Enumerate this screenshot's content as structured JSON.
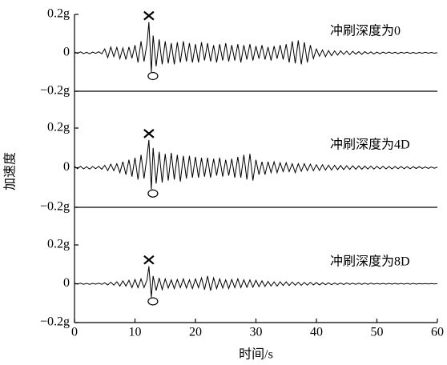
{
  "ylabel": "加速度",
  "chart_data": [
    {
      "type": "line",
      "annotation": "冲刷深度为0",
      "color": "#000000",
      "xlim": [
        0,
        60
      ],
      "ylim": [
        -0.2,
        0.2
      ],
      "yticks": [
        {
          "value": -0.2,
          "label": "−0.2g"
        },
        0,
        {
          "value": 0.2,
          "label": "0.2g"
        }
      ],
      "x": [
        0,
        0.5,
        1,
        1.5,
        2,
        2.5,
        3,
        3.5,
        4,
        4.5,
        5,
        5.5,
        6,
        6.5,
        7,
        7.5,
        8,
        8.5,
        9,
        9.5,
        10,
        10.5,
        11,
        11.5,
        12,
        12.3,
        12.7,
        13,
        13.5,
        14,
        14.5,
        15,
        15.5,
        16,
        16.5,
        17,
        17.5,
        18,
        18.5,
        19,
        19.5,
        20,
        20.5,
        21,
        21.5,
        22,
        22.5,
        23,
        23.5,
        24,
        24.5,
        25,
        25.5,
        26,
        26.5,
        27,
        27.5,
        28,
        28.5,
        29,
        29.5,
        30,
        30.5,
        31,
        31.5,
        32,
        32.5,
        33,
        33.5,
        34,
        34.5,
        35,
        35.5,
        36,
        36.5,
        37,
        37.5,
        38,
        38.5,
        39,
        39.5,
        40,
        40.5,
        41,
        41.5,
        42,
        42.5,
        43,
        43.5,
        44,
        44.5,
        45,
        45.5,
        46,
        46.5,
        47,
        47.5,
        48,
        48.5,
        49,
        49.5,
        50,
        50.5,
        51,
        51.5,
        52,
        52.5,
        53,
        53.5,
        54,
        54.5,
        55,
        55.5,
        56,
        56.5,
        57,
        57.5,
        58,
        58.5,
        59,
        59.5,
        60
      ],
      "values": [
        0.004,
        -0.003,
        0.005,
        -0.004,
        0.003,
        -0.005,
        0.004,
        -0.003,
        0.006,
        -0.005,
        0.02,
        -0.025,
        0.03,
        -0.02,
        0.028,
        -0.03,
        0.025,
        -0.035,
        0.03,
        -0.028,
        0.04,
        -0.05,
        0.06,
        -0.045,
        0.05,
        0.16,
        -0.1,
        0.09,
        -0.07,
        0.07,
        -0.06,
        0.06,
        -0.055,
        0.05,
        -0.06,
        0.055,
        -0.05,
        0.06,
        -0.045,
        0.05,
        -0.05,
        0.045,
        -0.05,
        0.055,
        -0.04,
        0.05,
        -0.045,
        0.04,
        -0.05,
        0.045,
        -0.04,
        0.05,
        -0.045,
        0.04,
        -0.04,
        0.045,
        -0.05,
        0.04,
        -0.035,
        0.045,
        -0.04,
        0.035,
        -0.03,
        0.04,
        -0.035,
        0.03,
        -0.04,
        0.035,
        -0.03,
        0.04,
        -0.035,
        0.045,
        -0.05,
        0.06,
        -0.055,
        0.065,
        -0.06,
        0.055,
        -0.05,
        0.04,
        -0.03,
        0.02,
        -0.018,
        0.015,
        -0.02,
        0.012,
        -0.015,
        0.01,
        -0.012,
        0.01,
        -0.008,
        0.009,
        -0.01,
        0.008,
        -0.007,
        0.006,
        -0.008,
        0.006,
        -0.005,
        0.005,
        -0.006,
        0.004,
        -0.005,
        0.004,
        -0.003,
        0.004,
        -0.003,
        0.003,
        -0.004,
        0.003,
        -0.002,
        0.003,
        -0.003,
        0.002,
        -0.003,
        0.002,
        -0.002,
        0.003,
        -0.002,
        0.002,
        -0.002,
        0.001
      ]
    },
    {
      "type": "line",
      "annotation": "冲刷深度为4D",
      "color": "#000000",
      "xlim": [
        0,
        60
      ],
      "ylim": [
        -0.2,
        0.2
      ],
      "yticks": [
        {
          "value": -0.2,
          "label": "−0.2g"
        },
        0,
        {
          "value": 0.2,
          "label": "0.2g"
        }
      ],
      "x": [
        0,
        0.5,
        1,
        1.5,
        2,
        2.5,
        3,
        3.5,
        4,
        4.5,
        5,
        5.5,
        6,
        6.5,
        7,
        7.5,
        8,
        8.5,
        9,
        9.5,
        10,
        10.5,
        11,
        11.5,
        12,
        12.3,
        12.7,
        13,
        13.5,
        14,
        14.5,
        15,
        15.5,
        16,
        16.5,
        17,
        17.5,
        18,
        18.5,
        19,
        19.5,
        20,
        20.5,
        21,
        21.5,
        22,
        22.5,
        23,
        23.5,
        24,
        24.5,
        25,
        25.5,
        26,
        26.5,
        27,
        27.5,
        28,
        28.5,
        29,
        29.5,
        30,
        30.5,
        31,
        31.5,
        32,
        32.5,
        33,
        33.5,
        34,
        34.5,
        35,
        35.5,
        36,
        36.5,
        37,
        37.5,
        38,
        38.5,
        39,
        39.5,
        40,
        40.5,
        41,
        41.5,
        42,
        42.5,
        43,
        43.5,
        44,
        44.5,
        45,
        45.5,
        46,
        46.5,
        47,
        47.5,
        48,
        48.5,
        49,
        49.5,
        50,
        50.5,
        51,
        51.5,
        52,
        52.5,
        53,
        53.5,
        54,
        54.5,
        55,
        55.5,
        56,
        56.5,
        57,
        57.5,
        58,
        58.5,
        59,
        59.5,
        60
      ],
      "values": [
        0.006,
        -0.005,
        0.007,
        -0.006,
        0.005,
        -0.007,
        0.006,
        -0.005,
        0.007,
        -0.008,
        0.012,
        -0.015,
        0.018,
        -0.015,
        0.02,
        -0.025,
        0.03,
        -0.035,
        0.04,
        -0.045,
        0.05,
        -0.06,
        0.065,
        -0.055,
        0.06,
        0.14,
        -0.11,
        0.1,
        -0.08,
        0.08,
        -0.075,
        0.07,
        -0.065,
        0.075,
        -0.06,
        0.065,
        -0.07,
        0.06,
        -0.055,
        0.06,
        -0.05,
        0.055,
        -0.05,
        0.05,
        -0.045,
        0.05,
        -0.05,
        0.045,
        -0.04,
        0.05,
        -0.045,
        0.04,
        -0.04,
        0.045,
        -0.05,
        0.055,
        -0.05,
        0.065,
        -0.06,
        0.07,
        -0.065,
        0.04,
        -0.035,
        0.03,
        -0.035,
        0.03,
        -0.025,
        0.03,
        -0.025,
        0.025,
        -0.02,
        0.025,
        -0.02,
        0.02,
        -0.025,
        0.02,
        -0.018,
        0.02,
        -0.015,
        0.018,
        -0.015,
        0.015,
        -0.014,
        0.015,
        -0.012,
        0.013,
        -0.012,
        0.012,
        -0.01,
        0.011,
        -0.01,
        0.01,
        -0.009,
        0.01,
        -0.008,
        0.009,
        -0.008,
        0.008,
        -0.007,
        0.008,
        -0.007,
        0.007,
        -0.006,
        0.007,
        -0.006,
        0.006,
        -0.006,
        0.006,
        -0.005,
        0.006,
        -0.005,
        0.005,
        -0.005,
        0.005,
        -0.004,
        0.005,
        -0.004,
        0.004,
        -0.004,
        0.004,
        -0.003,
        0.003
      ]
    },
    {
      "type": "line",
      "annotation": "冲刷深度为8D",
      "color": "#000000",
      "xlim": [
        0,
        60
      ],
      "ylim": [
        -0.2,
        0.2
      ],
      "yticks": [
        {
          "value": -0.2,
          "label": "−0.2g"
        },
        0,
        {
          "value": 0.2,
          "label": "0.2g"
        }
      ],
      "xticks": [
        0,
        10,
        20,
        30,
        40,
        50,
        60
      ],
      "xlabel": "时间/s",
      "x": [
        0,
        0.5,
        1,
        1.5,
        2,
        2.5,
        3,
        3.5,
        4,
        4.5,
        5,
        5.5,
        6,
        6.5,
        7,
        7.5,
        8,
        8.5,
        9,
        9.5,
        10,
        10.5,
        11,
        11.5,
        12,
        12.3,
        12.7,
        13,
        13.5,
        14,
        14.5,
        15,
        15.5,
        16,
        16.5,
        17,
        17.5,
        18,
        18.5,
        19,
        19.5,
        20,
        20.5,
        21,
        21.5,
        22,
        22.5,
        23,
        23.5,
        24,
        24.5,
        25,
        25.5,
        26,
        26.5,
        27,
        27.5,
        28,
        28.5,
        29,
        29.5,
        30,
        30.5,
        31,
        31.5,
        32,
        32.5,
        33,
        33.5,
        34,
        34.5,
        35,
        35.5,
        36,
        36.5,
        37,
        37.5,
        38,
        38.5,
        39,
        39.5,
        40,
        40.5,
        41,
        41.5,
        42,
        42.5,
        43,
        43.5,
        44,
        44.5,
        45,
        45.5,
        46,
        46.5,
        47,
        47.5,
        48,
        48.5,
        49,
        49.5,
        50,
        50.5,
        51,
        51.5,
        52,
        52.5,
        53,
        53.5,
        54,
        54.5,
        55,
        55.5,
        56,
        56.5,
        57,
        57.5,
        58,
        58.5,
        59,
        59.5,
        60
      ],
      "values": [
        0.003,
        -0.002,
        0.003,
        -0.003,
        0.002,
        -0.003,
        0.002,
        -0.002,
        0.003,
        -0.003,
        0.005,
        -0.006,
        0.008,
        -0.007,
        0.01,
        -0.012,
        0.015,
        -0.012,
        0.018,
        -0.02,
        0.022,
        -0.02,
        0.025,
        -0.02,
        0.02,
        0.09,
        -0.07,
        0.04,
        -0.035,
        0.03,
        -0.03,
        0.025,
        -0.022,
        0.02,
        -0.025,
        0.022,
        -0.02,
        0.025,
        -0.022,
        0.02,
        -0.025,
        0.025,
        -0.02,
        0.03,
        -0.03,
        0.04,
        -0.035,
        0.03,
        -0.025,
        0.025,
        -0.022,
        0.02,
        -0.025,
        0.022,
        -0.02,
        0.025,
        -0.02,
        0.02,
        -0.018,
        0.02,
        -0.018,
        0.018,
        -0.015,
        0.015,
        -0.014,
        0.012,
        -0.012,
        0.01,
        -0.012,
        0.01,
        -0.009,
        0.01,
        -0.009,
        0.009,
        -0.008,
        0.008,
        -0.008,
        0.007,
        -0.007,
        0.007,
        -0.006,
        0.006,
        -0.006,
        0.005,
        -0.005,
        0.005,
        -0.005,
        0.004,
        -0.004,
        0.004,
        -0.004,
        0.004,
        -0.003,
        0.003,
        -0.003,
        0.003,
        -0.003,
        0.003,
        -0.003,
        0.003,
        -0.002,
        0.002,
        -0.002,
        0.002,
        -0.002,
        0.002,
        -0.002,
        0.002,
        -0.002,
        0.002,
        -0.002,
        0.002,
        -0.002,
        0.002,
        -0.002,
        0.001,
        -0.001,
        0.001,
        -0.001,
        0.001,
        -0.001,
        0.001
      ]
    }
  ]
}
